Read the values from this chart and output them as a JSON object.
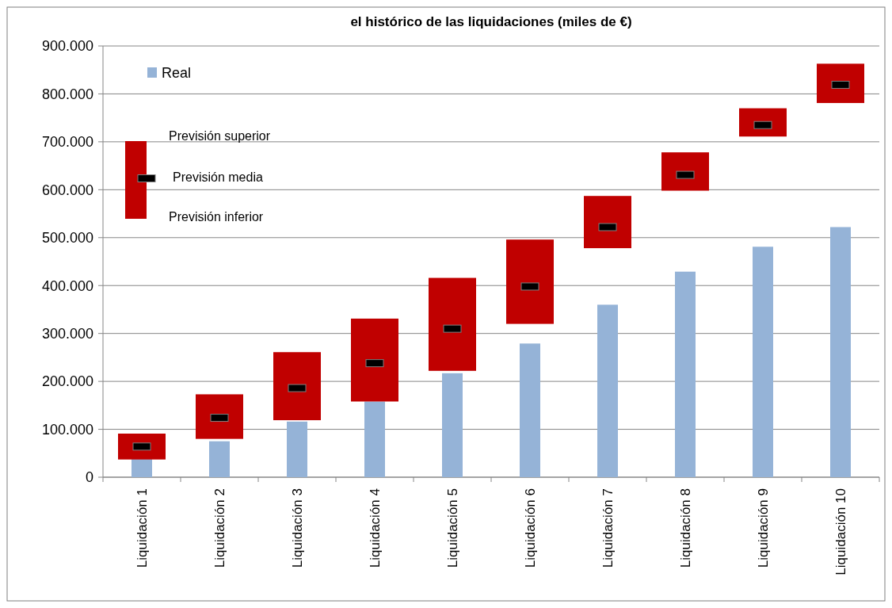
{
  "chart_data": {
    "type": "bar",
    "title": "el histórico de las liquidaciones (miles de €)",
    "categories": [
      "Liquidación 1",
      "Liquidación 2",
      "Liquidación 3",
      "Liquidación 4",
      "Liquidación 5",
      "Liquidación 6",
      "Liquidación 7",
      "Liquidación 8",
      "Liquidación 9",
      "Liquidación 10"
    ],
    "series": [
      {
        "name": "Real",
        "color": "#95b3d7",
        "values": [
          40000,
          75000,
          116000,
          158000,
          217000,
          279000,
          360000,
          429000,
          481000,
          522000
        ]
      },
      {
        "color": "#c00000",
        "base": [
          37000,
          80000,
          119000,
          158000,
          222000,
          320000,
          478000,
          598000,
          711000,
          781000
        ],
        "values": [
          54000,
          93000,
          142000,
          173000,
          194000,
          176000,
          109000,
          80000,
          59000,
          82000
        ]
      },
      {
        "name": "Previsión media",
        "type": "scatter",
        "color": "#000000",
        "marker": "square",
        "values": [
          64000,
          124000,
          186000,
          238000,
          310000,
          398000,
          522000,
          631000,
          735000,
          819000
        ]
      }
    ],
    "annotations": [
      "Previsión superior",
      "Previsión inferior"
    ],
    "ylim": [
      0,
      900000
    ],
    "yticks": [
      {
        "value": 0,
        "label": "0"
      },
      {
        "value": 100000,
        "label": "100.000"
      },
      {
        "value": 200000,
        "label": "200.000"
      },
      {
        "value": 300000,
        "label": "300.000"
      },
      {
        "value": 400000,
        "label": "400.000"
      },
      {
        "value": 500000,
        "label": "500.000"
      },
      {
        "value": 600000,
        "label": "600.000"
      },
      {
        "value": 700000,
        "label": "700.000"
      },
      {
        "value": 800000,
        "label": "800.000"
      },
      {
        "value": 900000,
        "label": "900.000"
      }
    ],
    "grid": "y",
    "legend": "top left"
  }
}
